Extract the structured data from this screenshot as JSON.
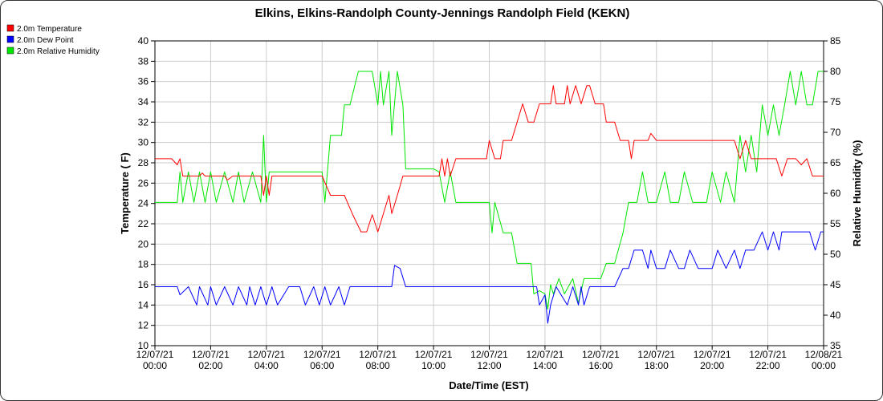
{
  "chart_data": {
    "type": "line",
    "title": "Elkins, Elkins-Randolph County-Jennings Randolph Field (KEKN)",
    "xlabel": "Date/Time (EST)",
    "ylabel": "Temperature ( F)",
    "y2label": "Relative Humidity (%)",
    "ylim": [
      10,
      40
    ],
    "y2lim": [
      35,
      85
    ],
    "yticks": [
      "10",
      "12",
      "14",
      "16",
      "18",
      "20",
      "22",
      "24",
      "26",
      "28",
      "30",
      "32",
      "34",
      "36",
      "38",
      "40"
    ],
    "y2ticks": [
      "35",
      "40",
      "45",
      "50",
      "55",
      "60",
      "65",
      "70",
      "75",
      "80",
      "85"
    ],
    "xlim": [
      0,
      24
    ],
    "xtick_positions": [
      0,
      2,
      4,
      6,
      8,
      10,
      12,
      14,
      16,
      18,
      20,
      22,
      24
    ],
    "xtick_dates": [
      "12/07/21",
      "12/07/21",
      "12/07/21",
      "12/07/21",
      "12/07/21",
      "12/07/21",
      "12/07/21",
      "12/07/21",
      "12/07/21",
      "12/07/21",
      "12/07/21",
      "12/07/21",
      "12/08/21"
    ],
    "xtick_times": [
      "00:00",
      "02:00",
      "04:00",
      "06:00",
      "08:00",
      "10:00",
      "12:00",
      "14:00",
      "16:00",
      "18:00",
      "20:00",
      "22:00",
      "00:00"
    ],
    "grid": true,
    "legend_position": "top-left",
    "series": [
      {
        "name": "2.0m Temperature",
        "color": "#ff0000",
        "axis": "left",
        "x": [
          0,
          0.6,
          0.8,
          0.9,
          1.0,
          1.2,
          1.5,
          1.6,
          1.7,
          1.8,
          2.5,
          2.6,
          2.8,
          3.0,
          3.5,
          3.8,
          3.9,
          4.0,
          4.1,
          4.2,
          5.0,
          5.1,
          5.2,
          6.0,
          6.3,
          6.5,
          6.8,
          7.1,
          7.4,
          7.6,
          7.8,
          8.0,
          8.4,
          8.5,
          8.7,
          8.9,
          9.0,
          9.4,
          9.8,
          10.2,
          10.3,
          10.4,
          10.5,
          10.6,
          10.8,
          11.2,
          11.9,
          12.0,
          12.2,
          12.4,
          12.5,
          12.8,
          13.0,
          13.2,
          13.4,
          13.6,
          13.8,
          14.0,
          14.2,
          14.3,
          14.4,
          14.7,
          14.8,
          14.9,
          15.1,
          15.3,
          15.5,
          15.6,
          15.8,
          16.0,
          16.1,
          16.2,
          16.5,
          16.7,
          17.0,
          17.1,
          17.2,
          17.7,
          17.8,
          18.0,
          18.5,
          19.0,
          19.5,
          20.0,
          20.5,
          20.8,
          21.0,
          21.2,
          21.4,
          21.8,
          22.0,
          22.2,
          22.3,
          22.5,
          22.7,
          23.0,
          23.2,
          23.4,
          23.6,
          24.0
        ],
        "y": [
          28.4,
          28.4,
          27.8,
          28.4,
          26.7,
          26.7,
          26.7,
          26.7,
          27.0,
          26.7,
          26.7,
          26.3,
          26.7,
          26.7,
          26.7,
          26.7,
          24.8,
          26.7,
          24.8,
          26.7,
          26.7,
          26.7,
          26.7,
          26.7,
          24.8,
          24.8,
          24.8,
          22.9,
          21.2,
          21.2,
          22.9,
          21.2,
          24.8,
          23.0,
          24.8,
          26.7,
          26.7,
          26.7,
          26.7,
          26.7,
          28.4,
          26.7,
          28.4,
          26.7,
          28.4,
          28.4,
          28.4,
          30.2,
          28.4,
          28.4,
          30.2,
          30.2,
          32.0,
          33.8,
          32.0,
          32.0,
          33.8,
          33.8,
          33.8,
          35.6,
          33.8,
          33.8,
          35.6,
          33.8,
          35.6,
          33.8,
          35.6,
          35.6,
          33.8,
          33.8,
          33.8,
          32.0,
          32.0,
          30.2,
          30.2,
          28.4,
          30.2,
          30.2,
          30.9,
          30.2,
          30.2,
          30.2,
          30.2,
          30.2,
          30.2,
          30.2,
          28.4,
          30.2,
          28.4,
          28.4,
          28.4,
          28.4,
          28.4,
          26.7,
          28.4,
          28.4,
          27.8,
          28.4,
          26.7,
          26.7
        ]
      },
      {
        "name": "2.0m Dew Point",
        "color": "#0000ff",
        "axis": "left",
        "x": [
          0,
          0.8,
          0.9,
          1.2,
          1.5,
          1.6,
          1.9,
          2.0,
          2.2,
          2.5,
          2.8,
          3.0,
          3.3,
          3.4,
          3.6,
          3.8,
          4.0,
          4.2,
          4.4,
          4.8,
          5.2,
          5.4,
          5.7,
          5.9,
          6.1,
          6.3,
          6.6,
          6.8,
          7.0,
          7.5,
          8.0,
          8.5,
          8.6,
          8.8,
          9.0,
          9.5,
          10.0,
          11.0,
          12.0,
          13.0,
          13.7,
          13.8,
          14.0,
          14.1,
          14.2,
          14.4,
          14.8,
          15.0,
          15.2,
          15.3,
          15.4,
          15.6,
          16.0,
          16.1,
          16.2,
          16.5,
          16.8,
          17.0,
          17.2,
          17.5,
          17.7,
          17.8,
          18.0,
          18.3,
          18.5,
          18.8,
          19.0,
          19.2,
          19.5,
          19.8,
          20.0,
          20.2,
          20.5,
          20.8,
          21.0,
          21.2,
          21.5,
          21.8,
          22.0,
          22.2,
          22.4,
          22.5,
          22.7,
          23.0,
          23.3,
          23.5,
          23.7,
          23.9,
          24.0
        ],
        "y": [
          15.8,
          15.8,
          15.0,
          15.8,
          14.0,
          15.8,
          14.0,
          15.8,
          14.0,
          15.8,
          14.0,
          15.8,
          14.0,
          15.8,
          14.0,
          15.8,
          14.0,
          15.8,
          14.0,
          15.8,
          15.8,
          14.0,
          15.8,
          14.0,
          15.8,
          14.0,
          15.8,
          14.0,
          15.8,
          15.8,
          15.8,
          15.8,
          17.9,
          17.6,
          15.8,
          15.8,
          15.8,
          15.8,
          15.8,
          15.8,
          15.8,
          14.0,
          15.0,
          12.2,
          14.0,
          15.8,
          14.0,
          15.8,
          14.0,
          15.8,
          14.0,
          15.8,
          15.8,
          15.8,
          15.8,
          15.8,
          17.6,
          17.6,
          19.4,
          19.4,
          17.6,
          19.4,
          17.6,
          17.6,
          19.4,
          17.6,
          17.6,
          19.4,
          17.6,
          17.6,
          17.6,
          19.4,
          17.6,
          19.4,
          17.6,
          19.4,
          19.4,
          21.2,
          19.4,
          21.2,
          19.4,
          21.2,
          21.2,
          21.2,
          21.2,
          21.2,
          19.4,
          21.2,
          21.2
        ]
      },
      {
        "name": "2.0m Relative Humidity",
        "color": "#00e600",
        "axis": "right",
        "x": [
          0,
          0.8,
          0.9,
          1.0,
          1.2,
          1.4,
          1.6,
          1.8,
          2.0,
          2.2,
          2.5,
          2.8,
          3.0,
          3.2,
          3.5,
          3.8,
          3.9,
          4.0,
          4.1,
          4.2,
          4.5,
          5.0,
          5.5,
          6.0,
          6.1,
          6.3,
          6.5,
          6.7,
          6.8,
          7.0,
          7.3,
          7.6,
          7.8,
          8.0,
          8.1,
          8.2,
          8.4,
          8.5,
          8.7,
          8.9,
          9.0,
          9.5,
          10.0,
          10.2,
          10.4,
          10.6,
          10.8,
          11.0,
          11.5,
          12.0,
          12.1,
          12.2,
          12.5,
          12.8,
          13.0,
          13.3,
          13.5,
          13.6,
          13.8,
          14.0,
          14.1,
          14.2,
          14.3,
          14.5,
          14.7,
          15.0,
          15.2,
          15.4,
          15.6,
          16.0,
          16.2,
          16.5,
          16.8,
          17.0,
          17.3,
          17.5,
          17.7,
          18.0,
          18.3,
          18.5,
          18.8,
          19.0,
          19.3,
          19.5,
          19.8,
          20.0,
          20.3,
          20.5,
          20.8,
          21.0,
          21.2,
          21.4,
          21.6,
          21.8,
          22.0,
          22.2,
          22.4,
          22.6,
          22.8,
          23.0,
          23.2,
          23.4,
          23.6,
          23.8,
          24.0
        ],
        "y": [
          58.5,
          58.5,
          63.5,
          58.5,
          63.5,
          58.5,
          63.5,
          58.5,
          63.5,
          58.5,
          63.5,
          58.5,
          63.5,
          58.5,
          63.5,
          58.5,
          69.5,
          58.5,
          63.5,
          63.5,
          63.5,
          63.5,
          63.5,
          63.5,
          58.5,
          69.5,
          69.5,
          69.5,
          74.5,
          74.5,
          80.0,
          80.0,
          80.0,
          74.5,
          80.0,
          74.5,
          80.0,
          69.5,
          80.0,
          74.5,
          64.0,
          64.0,
          64.0,
          63.5,
          58.5,
          63.5,
          58.5,
          58.5,
          58.5,
          58.5,
          53.5,
          58.5,
          53.5,
          53.5,
          48.5,
          48.5,
          48.5,
          43.5,
          44.0,
          43.5,
          41.0,
          45.0,
          43.5,
          46.0,
          43.5,
          46.0,
          42.0,
          46.0,
          46.0,
          46.0,
          48.5,
          48.5,
          53.5,
          58.5,
          58.5,
          63.5,
          58.5,
          58.5,
          63.5,
          58.5,
          58.5,
          63.5,
          58.5,
          58.5,
          58.5,
          63.5,
          58.5,
          63.5,
          58.5,
          69.5,
          63.5,
          69.5,
          63.5,
          74.5,
          69.5,
          74.5,
          69.5,
          74.5,
          80.0,
          74.5,
          80.0,
          74.5,
          74.5,
          80.0,
          80.0
        ]
      }
    ]
  }
}
